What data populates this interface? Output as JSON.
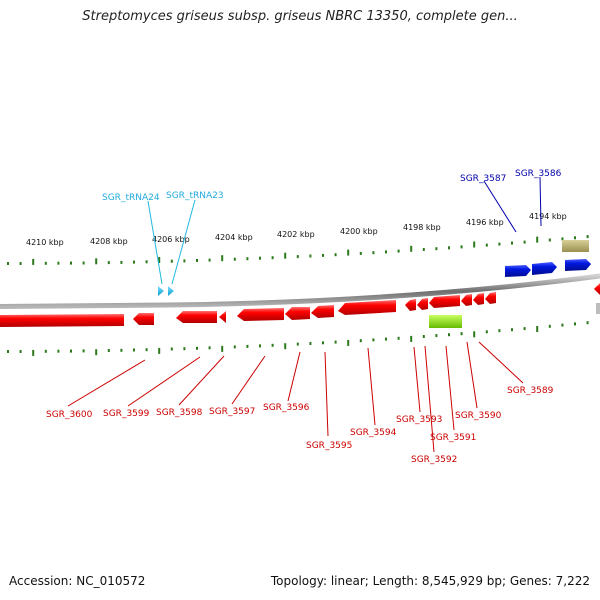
{
  "title": "Streptomyces griseus subsp. griseus NBRC 13350, complete gen...",
  "footer": {
    "accession": "Accession: NC_010572",
    "summary": "Topology: linear; Length: 8,545,929 bp; Genes: 7,222"
  },
  "colors": {
    "forward_gene": "#0018d0",
    "reverse_gene": "#f00000",
    "trna": "#22b8e0",
    "misc_feature": "#b8b06a",
    "green_feature": "#88dd11",
    "tick": "#2d7a1c",
    "backbone": "#8a8a8a",
    "label_forward": "#0000aa",
    "label_reverse": "#cc0000",
    "label_trna": "#22aadd"
  },
  "axis": {
    "tick_labels": [
      "4210 kbp",
      "4208 kbp",
      "4206 kbp",
      "4204 kbp",
      "4202 kbp",
      "4200 kbp",
      "4198 kbp",
      "4196 kbp",
      "4194 kbp"
    ]
  },
  "labels": {
    "trna": [
      "SGR_tRNA24",
      "SGR_tRNA23"
    ],
    "forward": [
      "SGR_3587",
      "SGR_3586"
    ],
    "reverse": [
      "SGR_3600",
      "SGR_3599",
      "SGR_3598",
      "SGR_3597",
      "SGR_3596",
      "SGR_3595",
      "SGR_3594",
      "SGR_3593",
      "SGR_3592",
      "SGR_3591",
      "SGR_3590",
      "SGR_3589"
    ]
  }
}
